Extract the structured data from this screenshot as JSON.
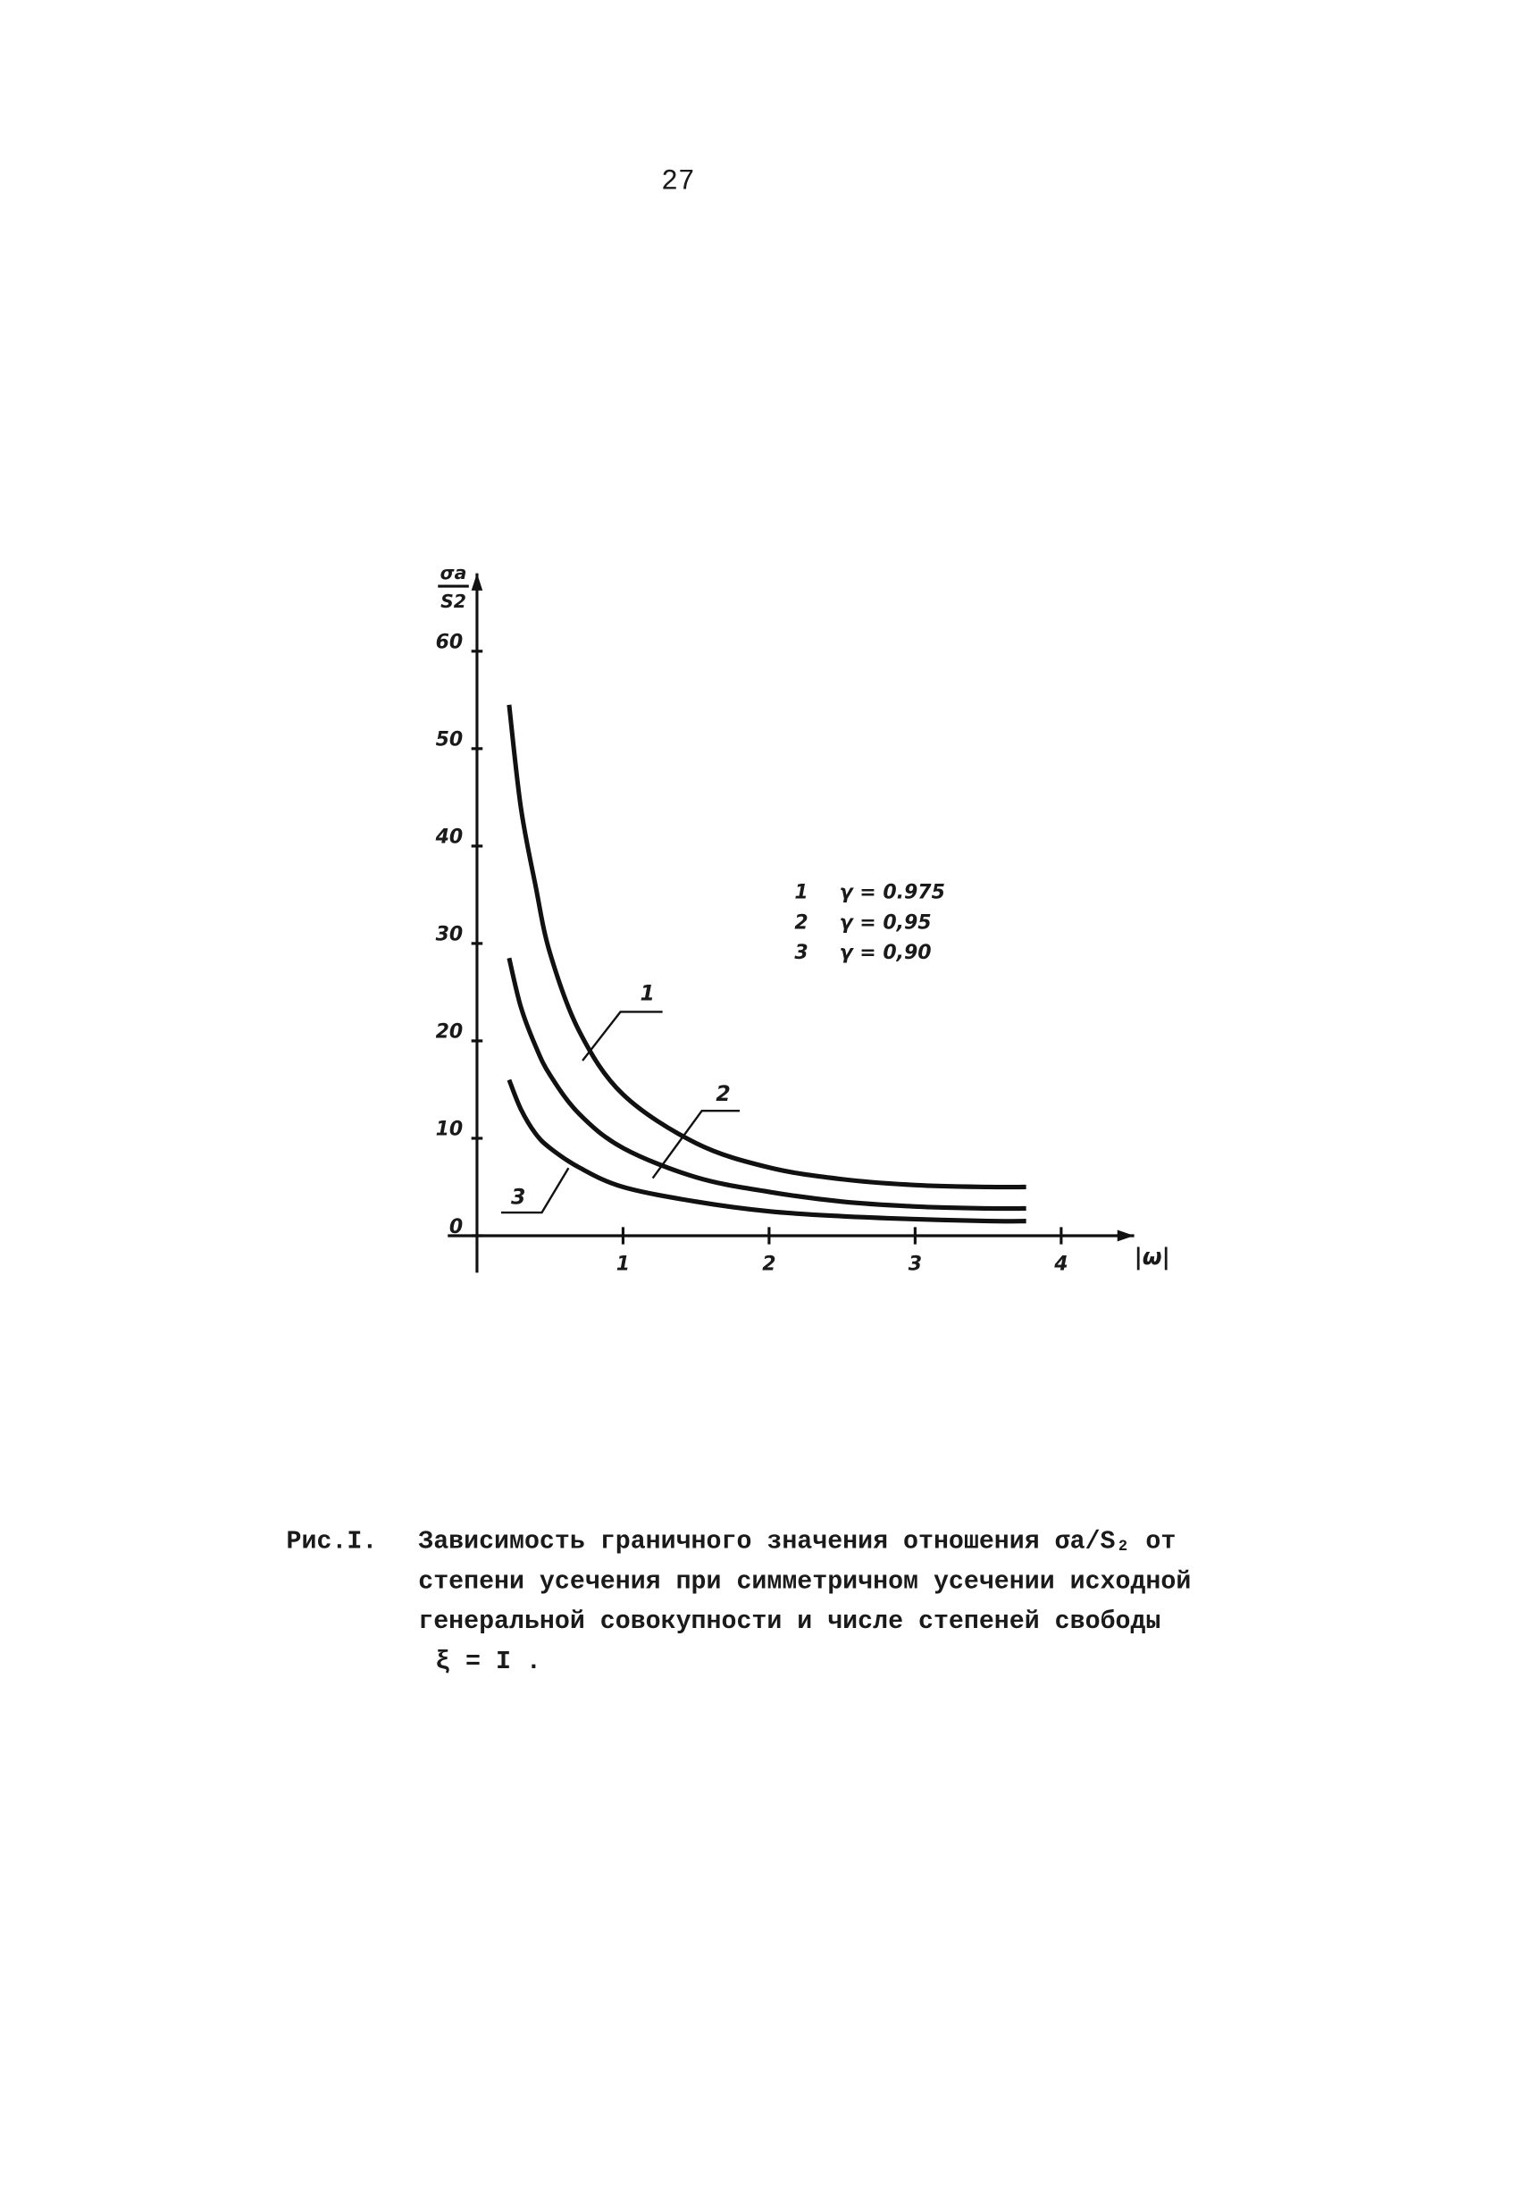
{
  "page_number": "27",
  "chart_data": {
    "type": "line",
    "y_label_top": "σa",
    "y_label_bottom": "S2",
    "x_label": "|ω|",
    "x": [
      0.22,
      0.3,
      0.4,
      0.5,
      0.7,
      1.0,
      1.5,
      2.0,
      2.5,
      3.0,
      3.5,
      3.76
    ],
    "series": [
      {
        "name": "γ = 0.975",
        "label": "1",
        "color": "#111111",
        "values": [
          54.5,
          44,
          36,
          29,
          21,
          14.5,
          9.5,
          7,
          5.8,
          5.2,
          5,
          5
        ]
      },
      {
        "name": "γ = 0,95",
        "label": "2",
        "color": "#111111",
        "values": [
          28.5,
          23.5,
          19.5,
          16.5,
          12.5,
          9,
          6,
          4.5,
          3.5,
          3,
          2.8,
          2.8
        ]
      },
      {
        "name": "γ = 0,90",
        "label": "3",
        "color": "#111111",
        "values": [
          16,
          13,
          10.5,
          9,
          7,
          5,
          3.5,
          2.5,
          2,
          1.7,
          1.5,
          1.5
        ]
      }
    ],
    "xlim": [
      -0.2,
      4.5
    ],
    "ylim": [
      -3.8,
      68
    ],
    "xticks": [
      1,
      2,
      3,
      4
    ],
    "yticks": [
      0,
      10,
      20,
      30,
      40,
      50,
      60
    ]
  },
  "caption": {
    "label": "Рис.I.",
    "lines": [
      "Зависимость граничного значения отношения σа/S₂ от",
      "степени усечения при симметричном усечении исходной",
      "генеральной совокупности и числе степеней свободы",
      "ξ = I ."
    ]
  }
}
